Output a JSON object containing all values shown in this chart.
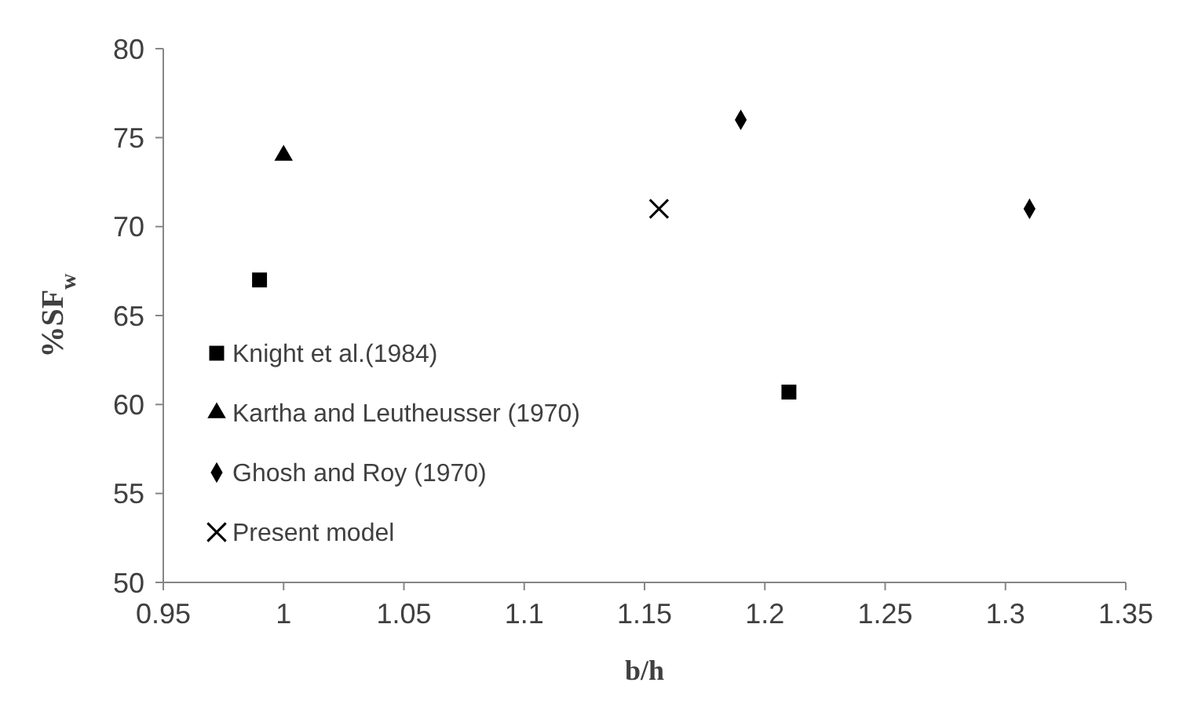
{
  "chart_data": {
    "type": "scatter",
    "xlabel": "b/h",
    "ylabel": "%SF$_{w}$",
    "xlim": [
      0.95,
      1.35
    ],
    "xticks": [
      0.95,
      1,
      1.05,
      1.1,
      1.15,
      1.2,
      1.25,
      1.3,
      1.35
    ],
    "ylim": [
      50,
      80
    ],
    "yticks": [
      50,
      55,
      60,
      65,
      70,
      75,
      80
    ],
    "grid": false,
    "legend": "bottom left",
    "series": [
      {
        "name": "Knight et al.(1984)",
        "color": "#000000",
        "marker": "square",
        "x": [
          0.99,
          1.21
        ],
        "values": [
          67,
          60.7
        ]
      },
      {
        "name": "Kartha and Leutheusser (1970)",
        "color": "#000000",
        "marker": "triangle",
        "x": [
          1.0
        ],
        "values": [
          74
        ]
      },
      {
        "name": "Ghosh and Roy (1970)",
        "color": "#000000",
        "marker": "diamond",
        "x": [
          1.19,
          1.31
        ],
        "values": [
          76,
          71
        ]
      },
      {
        "name": "Present model",
        "color": "#000000",
        "marker": "cross",
        "x": [
          1.156
        ],
        "values": [
          71
        ]
      }
    ]
  }
}
